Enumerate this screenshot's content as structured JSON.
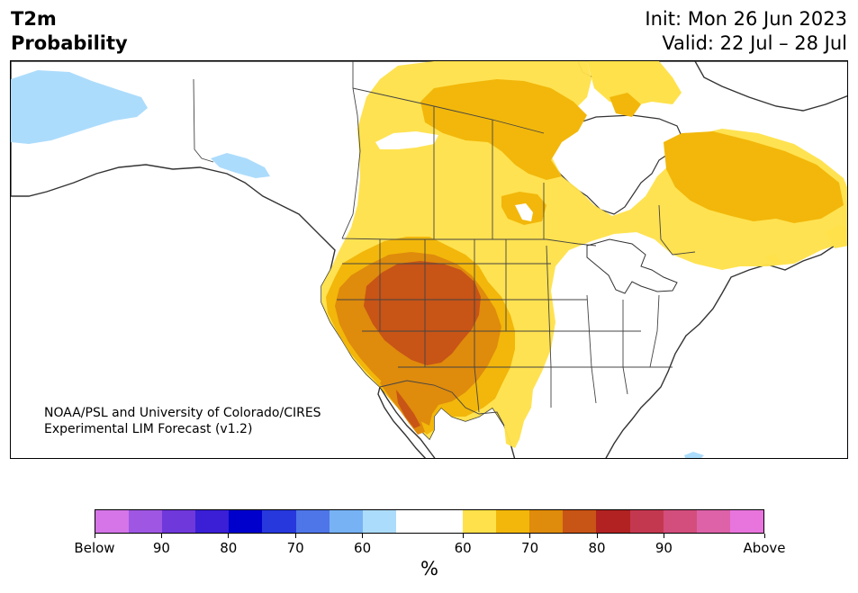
{
  "header": {
    "variable": "T2m",
    "product": "Probability",
    "init": "Init: Mon 26 Jun 2023",
    "valid": "Valid: 22 Jul – 28 Jul"
  },
  "credit": {
    "line1": "NOAA/PSL and University of Colorado/CIRES",
    "line2": "Experimental LIM Forecast (v1.2)"
  },
  "colorbar": {
    "unit": "%",
    "colors": [
      "#d575e8",
      "#9f57e3",
      "#6f38db",
      "#3a1fd6",
      "#0000cc",
      "#2738dc",
      "#4f76e8",
      "#76b2f4",
      "#acdcfc",
      "#ffffff",
      "#ffffff",
      "#ffe14b",
      "#f2b70a",
      "#df8b0c",
      "#c85416",
      "#b22222",
      "#c4384f",
      "#d34e7c",
      "#dd62a8",
      "#e875dd"
    ],
    "tick_labels": [
      "Below",
      "90",
      "80",
      "70",
      "60",
      "60",
      "70",
      "80",
      "90",
      "Above"
    ]
  },
  "map_colors": {
    "ocean": "#ffffff",
    "land": "#ffffff",
    "cat_60_below": "#acdcfc",
    "cat_60": "#ffe14b",
    "cat_65": "#f2b70a",
    "cat_70": "#df8b0c",
    "cat_75": "#c85416",
    "coast": "#333333"
  }
}
